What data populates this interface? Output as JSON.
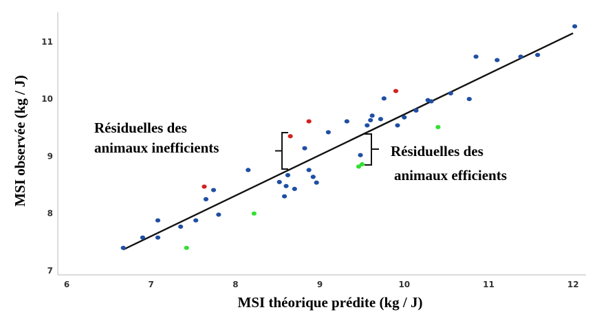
{
  "chart_data": {
    "type": "scatter",
    "title": "",
    "xlabel": "MSI théorique prédite (kg / J)",
    "ylabel": "MSI observée (kg / J)",
    "xlim": [
      6,
      12
    ],
    "ylim": [
      7,
      11.3
    ],
    "x_ticks": [
      "6",
      "7",
      "8",
      "9",
      "10",
      "11",
      "12"
    ],
    "y_ticks": [
      "7",
      "8",
      "9",
      "10",
      "11"
    ],
    "grid": false,
    "legend": "none",
    "colors": {
      "blue": "#1f4fa3",
      "red": "#d42020",
      "green": "#33e033",
      "line": "#111111",
      "bracket": "#111111"
    },
    "regression_line": {
      "x": [
        6.67,
        12.0
      ],
      "y": [
        7.37,
        11.15
      ]
    },
    "series": [
      {
        "color": "blue",
        "points": [
          [
            6.67,
            7.4
          ],
          [
            6.9,
            7.58
          ],
          [
            7.08,
            7.88
          ],
          [
            7.08,
            7.58
          ],
          [
            7.35,
            7.77
          ],
          [
            7.53,
            7.88
          ],
          [
            7.65,
            8.25
          ],
          [
            7.74,
            8.41
          ],
          [
            7.8,
            7.98
          ],
          [
            8.15,
            8.76
          ],
          [
            8.52,
            8.55
          ],
          [
            8.58,
            8.3
          ],
          [
            8.6,
            8.48
          ],
          [
            8.62,
            8.67
          ],
          [
            8.7,
            8.43
          ],
          [
            8.82,
            9.14
          ],
          [
            8.87,
            8.76
          ],
          [
            8.92,
            8.64
          ],
          [
            8.96,
            8.54
          ],
          [
            9.1,
            9.42
          ],
          [
            9.32,
            9.61
          ],
          [
            9.48,
            9.02
          ],
          [
            9.56,
            9.54
          ],
          [
            9.6,
            9.63
          ],
          [
            9.62,
            9.71
          ],
          [
            9.72,
            9.65
          ],
          [
            9.76,
            10.01
          ],
          [
            9.92,
            9.54
          ],
          [
            10.0,
            9.68
          ],
          [
            10.14,
            9.8
          ],
          [
            10.28,
            9.98
          ],
          [
            10.32,
            9.96
          ],
          [
            10.55,
            10.1
          ],
          [
            10.77,
            10.0
          ],
          [
            10.85,
            10.74
          ],
          [
            11.1,
            10.68
          ],
          [
            11.38,
            10.74
          ],
          [
            11.58,
            10.77
          ],
          [
            12.02,
            11.27
          ]
        ]
      },
      {
        "color": "red",
        "points": [
          [
            7.63,
            8.47
          ],
          [
            8.65,
            9.35
          ],
          [
            8.87,
            9.61
          ],
          [
            9.9,
            10.14
          ]
        ]
      },
      {
        "color": "green",
        "points": [
          [
            7.42,
            7.4
          ],
          [
            8.22,
            8.0
          ],
          [
            9.46,
            8.82
          ],
          [
            9.5,
            8.86
          ],
          [
            10.4,
            9.51
          ]
        ]
      }
    ],
    "annotations": [
      {
        "line1": "Résiduelles des",
        "line2": "animaux inefficients"
      },
      {
        "line1": "Résiduelles des",
        "line2": "animaux efficients"
      }
    ]
  }
}
